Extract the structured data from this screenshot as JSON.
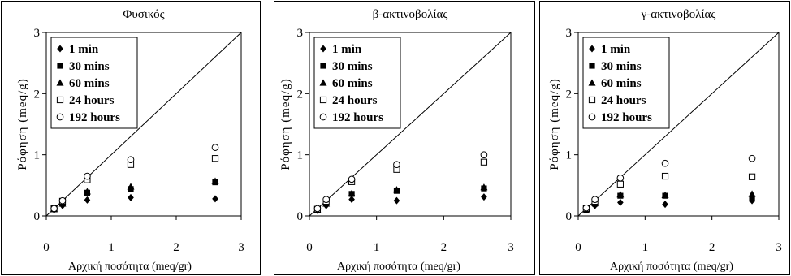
{
  "chart_data": [
    {
      "type": "scatter",
      "title": "Φυσικός",
      "xlabel": "Αρχική ποσότητα (meq/gr)",
      "ylabel": "Ρόφηση (meq/g)",
      "xlim": [
        0,
        3
      ],
      "ylim": [
        0,
        3
      ],
      "xticks": [
        "0",
        "1",
        "2",
        "3"
      ],
      "yticks": [
        "0",
        "1",
        "2",
        "3"
      ],
      "legend_position": "top-left",
      "reference_line": {
        "x": [
          0,
          3
        ],
        "y": [
          0,
          3
        ]
      },
      "x": [
        0.12,
        0.25,
        0.63,
        1.3,
        2.6
      ],
      "series": [
        {
          "name": "1 min",
          "marker": "diamond",
          "values": [
            0.1,
            0.17,
            0.26,
            0.3,
            0.28
          ]
        },
        {
          "name": "30 mins",
          "marker": "square-filled",
          "values": [
            0.11,
            0.2,
            0.38,
            0.44,
            0.55
          ]
        },
        {
          "name": "60 mins",
          "marker": "triangle",
          "values": [
            0.11,
            0.2,
            0.4,
            0.48,
            0.57
          ]
        },
        {
          "name": "24 hours",
          "marker": "square-open",
          "values": [
            0.12,
            0.24,
            0.59,
            0.84,
            0.94
          ]
        },
        {
          "name": "192 hours",
          "marker": "circle-open",
          "values": [
            0.12,
            0.25,
            0.65,
            0.92,
            1.12
          ]
        }
      ]
    },
    {
      "type": "scatter",
      "title": "β-ακτινοβολίας",
      "xlabel": "Αρχική ποσότητα (meq/gr)",
      "ylabel": "Ρόφηση (meq/g)",
      "xlim": [
        0,
        3
      ],
      "ylim": [
        0,
        3
      ],
      "xticks": [
        "0",
        "1",
        "2",
        "3"
      ],
      "yticks": [
        "0",
        "1",
        "2",
        "3"
      ],
      "legend_position": "top-left",
      "reference_line": {
        "x": [
          0,
          3
        ],
        "y": [
          0,
          3
        ]
      },
      "x": [
        0.12,
        0.25,
        0.63,
        1.3,
        2.6
      ],
      "series": [
        {
          "name": "1 min",
          "marker": "diamond",
          "values": [
            0.09,
            0.17,
            0.27,
            0.25,
            0.31
          ]
        },
        {
          "name": "30 mins",
          "marker": "square-filled",
          "values": [
            0.1,
            0.2,
            0.36,
            0.41,
            0.45
          ]
        },
        {
          "name": "60 mins",
          "marker": "triangle",
          "values": [
            0.1,
            0.2,
            0.37,
            0.43,
            0.47
          ]
        },
        {
          "name": "24 hours",
          "marker": "square-open",
          "values": [
            0.11,
            0.24,
            0.56,
            0.76,
            0.88
          ]
        },
        {
          "name": "192 hours",
          "marker": "circle-open",
          "values": [
            0.12,
            0.27,
            0.6,
            0.84,
            1.0
          ]
        }
      ]
    },
    {
      "type": "scatter",
      "title": "γ-ακτινοβολίας",
      "xlabel": "Αρχική ποσότητα (meq/gr)",
      "ylabel": "Ρόφηση (meq/g)",
      "xlim": [
        0,
        3
      ],
      "ylim": [
        0,
        3
      ],
      "xticks": [
        "0",
        "1",
        "2",
        "3"
      ],
      "yticks": [
        "0",
        "1",
        "2",
        "3"
      ],
      "legend_position": "top-left",
      "reference_line": {
        "x": [
          0,
          3
        ],
        "y": [
          0,
          3
        ]
      },
      "x": [
        0.12,
        0.25,
        0.63,
        1.3,
        2.6
      ],
      "series": [
        {
          "name": "1 min",
          "marker": "diamond",
          "values": [
            0.1,
            0.17,
            0.22,
            0.19,
            0.25
          ]
        },
        {
          "name": "30 mins",
          "marker": "square-filled",
          "values": [
            0.1,
            0.2,
            0.33,
            0.33,
            0.28
          ]
        },
        {
          "name": "60 mins",
          "marker": "triangle",
          "values": [
            0.11,
            0.21,
            0.35,
            0.34,
            0.36
          ]
        },
        {
          "name": "24 hours",
          "marker": "square-open",
          "values": [
            0.12,
            0.24,
            0.52,
            0.65,
            0.64
          ]
        },
        {
          "name": "192 hours",
          "marker": "circle-open",
          "values": [
            0.13,
            0.27,
            0.62,
            0.86,
            0.94
          ]
        }
      ]
    }
  ]
}
